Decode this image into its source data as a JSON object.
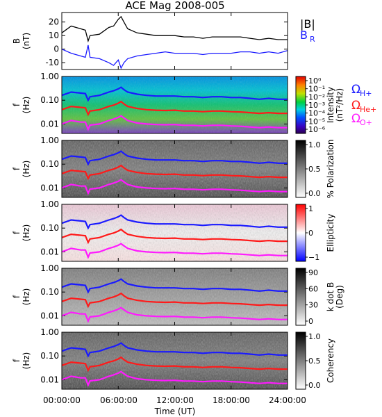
{
  "title": "ACE Mag 2008-005",
  "colors": {
    "b_total": "#000000",
    "b_r": "#1a1aff",
    "f_h": "#1a1aff",
    "f_he": "#ff1a1a",
    "f_o": "#ff1aff",
    "axis": "#000000"
  },
  "legends": {
    "b_total": "|B|",
    "b_r": "B",
    "b_r_sub": "R",
    "omega": "Ω",
    "h_sub": "H+",
    "he_sub": "He+",
    "o_sub": "O+"
  },
  "chart_data": [
    {
      "type": "line",
      "title": "ACE Mag 2008-005",
      "ylabel": "B",
      "yunit": "(nT)",
      "ylim": [
        -15,
        27
      ],
      "yticks": [
        "-10",
        "0",
        "10",
        "20"
      ],
      "xlim": [
        0,
        24
      ],
      "series": [
        {
          "name": "|B|",
          "x": [
            0,
            1,
            2,
            2.5,
            2.8,
            3,
            4,
            5,
            5.5,
            6,
            6.3,
            6.6,
            7,
            8,
            9,
            10,
            11,
            12,
            13,
            14,
            15,
            16,
            17,
            18,
            19,
            20,
            21,
            22,
            23,
            24
          ],
          "y": [
            12,
            17,
            15,
            14,
            6,
            10,
            11,
            16,
            17,
            22,
            24,
            20,
            15,
            12,
            11,
            10,
            10,
            10,
            9,
            9,
            8,
            9,
            9,
            9,
            9,
            8,
            7,
            8,
            7,
            7
          ]
        },
        {
          "name": "B_R",
          "x": [
            0,
            1,
            2,
            2.5,
            2.8,
            3,
            4,
            5,
            5.5,
            6,
            6.3,
            6.6,
            7,
            8,
            9,
            10,
            11,
            12,
            13,
            14,
            15,
            16,
            17,
            18,
            19,
            20,
            21,
            22,
            23,
            24
          ],
          "y": [
            0,
            -3,
            -5,
            -6,
            3,
            -6,
            -7,
            -10,
            -12,
            -8,
            -14,
            -10,
            -7,
            -5,
            -4,
            -3,
            -2,
            -3,
            -3,
            -3,
            -4,
            -3,
            -3,
            -3,
            -2,
            -2,
            -3,
            -2,
            -3,
            -1
          ]
        }
      ]
    },
    {
      "type": "heatmap",
      "ylabel": "f",
      "yunit": "(Hz)",
      "ylim": [
        0.004,
        1.0
      ],
      "yscale": "log",
      "yticks": [
        "1.00",
        "0.10",
        "0.01"
      ],
      "colorbar": {
        "label": "Intensity",
        "unit": "(nT²/Hz)",
        "ticks": [
          "10⁰",
          "10⁻¹",
          "10⁻²",
          "10⁻³",
          "10⁻⁴",
          "10⁻⁵",
          "10⁻⁶"
        ],
        "scale": "rainbow"
      },
      "overlays": [
        "f_H+",
        "f_He+",
        "f_O+"
      ]
    },
    {
      "type": "heatmap",
      "ylabel": "f",
      "yunit": "(Hz)",
      "ylim": [
        0.004,
        1.0
      ],
      "yscale": "log",
      "yticks": [
        "1.00",
        "0.10",
        "0.01"
      ],
      "colorbar": {
        "label": "% Polarization",
        "ticks": [
          "1.0",
          "0.5",
          "0.0"
        ],
        "scale": "gray"
      },
      "overlays": [
        "f_H+",
        "f_He+",
        "f_O+"
      ]
    },
    {
      "type": "heatmap",
      "ylabel": "f",
      "yunit": "(Hz)",
      "ylim": [
        0.004,
        1.0
      ],
      "yscale": "log",
      "yticks": [
        "1.00",
        "0.10",
        "0.01"
      ],
      "colorbar": {
        "label": "Ellipticity",
        "ticks": [
          "1",
          "0",
          "−1"
        ],
        "scale": "bwr"
      },
      "overlays": [
        "f_H+",
        "f_He+",
        "f_O+"
      ]
    },
    {
      "type": "heatmap",
      "ylabel": "f",
      "yunit": "(Hz)",
      "ylim": [
        0.004,
        1.0
      ],
      "yscale": "log",
      "yticks": [
        "1.00",
        "0.10",
        "0.01"
      ],
      "colorbar": {
        "label": "k dot B",
        "unit": "(Deg)",
        "ticks": [
          "90",
          "60",
          "30",
          "0"
        ],
        "scale": "gray"
      },
      "overlays": [
        "f_H+",
        "f_He+",
        "f_O+"
      ]
    },
    {
      "type": "heatmap",
      "ylabel": "f",
      "yunit": "(Hz)",
      "ylim": [
        0.004,
        1.0
      ],
      "yscale": "log",
      "yticks": [
        "1.00",
        "0.10",
        "0.01"
      ],
      "colorbar": {
        "label": "Coherency",
        "ticks": [
          "1.0",
          "0.5",
          "0.0"
        ],
        "scale": "gray"
      },
      "overlays": [
        "f_H+",
        "f_He+",
        "f_O+"
      ]
    }
  ],
  "gyrofrequencies": {
    "x": [
      0,
      1,
      2,
      2.5,
      2.8,
      3,
      4,
      5,
      5.5,
      6,
      6.3,
      6.6,
      7,
      8,
      9,
      10,
      11,
      12,
      13,
      14,
      15,
      16,
      17,
      18,
      19,
      20,
      21,
      22,
      23,
      24
    ],
    "f_H+": [
      0.16,
      0.22,
      0.2,
      0.19,
      0.1,
      0.14,
      0.16,
      0.22,
      0.25,
      0.3,
      0.35,
      0.28,
      0.22,
      0.18,
      0.16,
      0.15,
      0.15,
      0.15,
      0.14,
      0.14,
      0.13,
      0.14,
      0.14,
      0.13,
      0.13,
      0.12,
      0.11,
      0.12,
      0.11,
      0.11
    ],
    "f_He+": [
      0.04,
      0.055,
      0.05,
      0.048,
      0.025,
      0.035,
      0.04,
      0.055,
      0.062,
      0.075,
      0.088,
      0.07,
      0.055,
      0.045,
      0.04,
      0.038,
      0.037,
      0.038,
      0.035,
      0.035,
      0.033,
      0.035,
      0.035,
      0.033,
      0.032,
      0.03,
      0.028,
      0.03,
      0.028,
      0.028
    ],
    "f_O+": [
      0.01,
      0.014,
      0.012,
      0.012,
      0.006,
      0.009,
      0.01,
      0.014,
      0.016,
      0.019,
      0.022,
      0.018,
      0.014,
      0.011,
      0.01,
      0.0095,
      0.0093,
      0.0095,
      0.0088,
      0.0088,
      0.0083,
      0.0088,
      0.0088,
      0.0083,
      0.008,
      0.0075,
      0.007,
      0.0075,
      0.007,
      0.007
    ]
  },
  "xaxis": {
    "label": "Time (UT)",
    "ticks": [
      "00:00:00",
      "06:00:00",
      "12:00:00",
      "18:00:00",
      "24:00:00"
    ],
    "tick_hours": [
      0,
      6,
      12,
      18,
      24
    ],
    "xlim": [
      0,
      24
    ]
  }
}
